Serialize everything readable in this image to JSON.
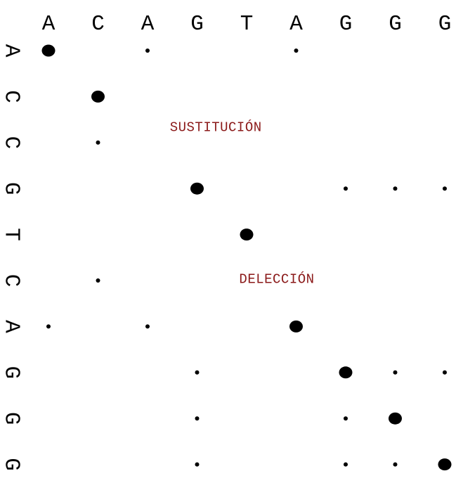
{
  "chart_data": {
    "type": "scatter",
    "title": "",
    "columns": [
      "A",
      "C",
      "A",
      "G",
      "T",
      "A",
      "G",
      "G",
      "G"
    ],
    "rows": [
      "A",
      "C",
      "C",
      "G",
      "T",
      "C",
      "A",
      "G",
      "G",
      "G"
    ],
    "points": [
      {
        "col": 0,
        "row": 0,
        "size": "large"
      },
      {
        "col": 2,
        "row": 0,
        "size": "small"
      },
      {
        "col": 5,
        "row": 0,
        "size": "small"
      },
      {
        "col": 1,
        "row": 1,
        "size": "large"
      },
      {
        "col": 1,
        "row": 2,
        "size": "small"
      },
      {
        "col": 3,
        "row": 3,
        "size": "large"
      },
      {
        "col": 6,
        "row": 3,
        "size": "small"
      },
      {
        "col": 7,
        "row": 3,
        "size": "small"
      },
      {
        "col": 8,
        "row": 3,
        "size": "small"
      },
      {
        "col": 4,
        "row": 4,
        "size": "large"
      },
      {
        "col": 1,
        "row": 5,
        "size": "small"
      },
      {
        "col": 0,
        "row": 6,
        "size": "small"
      },
      {
        "col": 2,
        "row": 6,
        "size": "small"
      },
      {
        "col": 5,
        "row": 6,
        "size": "large"
      },
      {
        "col": 3,
        "row": 7,
        "size": "small"
      },
      {
        "col": 6,
        "row": 7,
        "size": "large"
      },
      {
        "col": 7,
        "row": 7,
        "size": "small"
      },
      {
        "col": 8,
        "row": 7,
        "size": "small"
      },
      {
        "col": 3,
        "row": 8,
        "size": "small"
      },
      {
        "col": 6,
        "row": 8,
        "size": "small"
      },
      {
        "col": 7,
        "row": 8,
        "size": "large"
      },
      {
        "col": 3,
        "row": 9,
        "size": "small"
      },
      {
        "col": 6,
        "row": 9,
        "size": "small"
      },
      {
        "col": 7,
        "row": 9,
        "size": "small"
      },
      {
        "col": 8,
        "row": 9,
        "size": "large"
      }
    ],
    "annotations": [
      {
        "text": "SUSTITUCIÓN",
        "col": 2.45,
        "row": 1.75
      },
      {
        "text": "DELECCIÓN",
        "col": 3.85,
        "row": 5.05
      }
    ],
    "annotation_color": "#8b1a1a",
    "dot_color": "#000000",
    "grid": false
  }
}
